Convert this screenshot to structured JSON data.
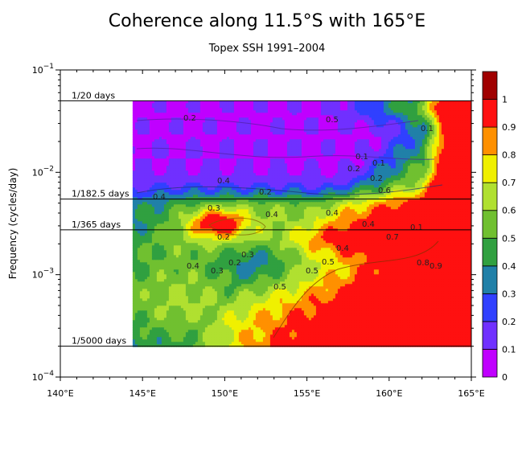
{
  "chart_data": {
    "type": "heatmap",
    "title": "Coherence along 11.5°S with 165°E",
    "subtitle": "Topex SSH 1991–2004",
    "ylabel": "Frequency (cycles/day)",
    "xlabel": "",
    "x_ticks": [
      "140°E",
      "145°E",
      "150°E",
      "155°E",
      "160°E",
      "165°E"
    ],
    "x_tick_values": [
      140,
      145,
      150,
      155,
      160,
      165
    ],
    "xlim": [
      140,
      165
    ],
    "ylim": [
      0.0001,
      0.1
    ],
    "y_scale": "log",
    "y_ticks": [
      {
        "value": 0.1,
        "base": "10",
        "exp": "−1"
      },
      {
        "value": 0.01,
        "base": "10",
        "exp": "−2"
      },
      {
        "value": 0.001,
        "base": "10",
        "exp": "−3"
      },
      {
        "value": 0.0001,
        "base": "10",
        "exp": "−4"
      }
    ],
    "data_x_range": [
      144.4,
      165
    ],
    "data_y_range": [
      0.0002,
      0.05
    ],
    "reference_lines": [
      {
        "label": "1/20 days",
        "freq": 0.05
      },
      {
        "label": "1/182.5 days",
        "freq": 0.00548
      },
      {
        "label": "1/365 days",
        "freq": 0.00274
      },
      {
        "label": "1/5000 days",
        "freq": 0.0002
      }
    ],
    "colorbar": {
      "levels": [
        0,
        0.1,
        0.2,
        0.3,
        0.4,
        0.5,
        0.6,
        0.7,
        0.8,
        0.9,
        1
      ],
      "labels": [
        "0",
        "0.1",
        "0.2",
        "0.3",
        "0.4",
        "0.5",
        "0.6",
        "0.7",
        "0.8",
        "0.9",
        "1"
      ],
      "colors": [
        "#c000ff",
        "#7030ff",
        "#3040ff",
        "#2080a8",
        "#30a040",
        "#70c030",
        "#b0e030",
        "#f0f000",
        "#ff9000",
        "#ff1010",
        "#a00000"
      ]
    },
    "contour_labels": [
      "0.2",
      "0.5",
      "0.1",
      "0.1",
      "0.2",
      "0.1",
      "0.4",
      "0.2",
      "0.4",
      "0.4",
      "0.4",
      "0.3",
      "0.2",
      "0.7",
      "0.2",
      "0.4",
      "0.5",
      "0.4",
      "0.3",
      "0.5",
      "0.5",
      "0.8",
      "0.9",
      "0.4",
      "0.1",
      "0.2",
      "0.3",
      "0.6"
    ],
    "grid": false,
    "legend": "right colorbar"
  }
}
